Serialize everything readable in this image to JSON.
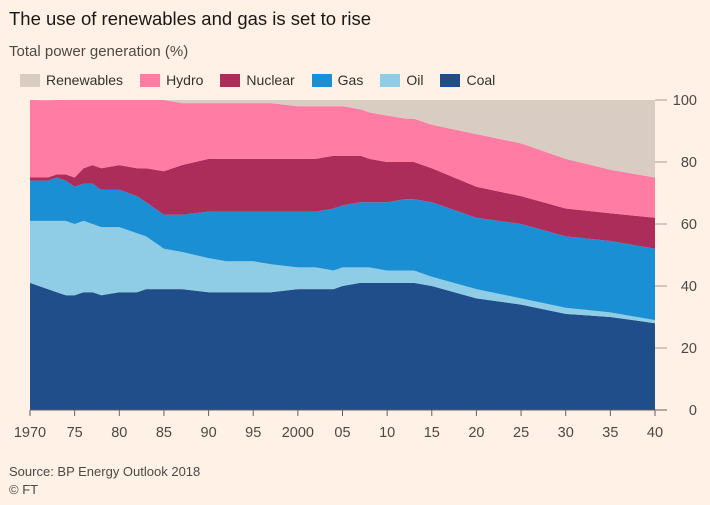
{
  "chart_data": {
    "type": "area",
    "stacked": true,
    "title": "The use of renewables and gas is set to rise",
    "subtitle": "Total power generation (%)",
    "source": "Source: BP Energy Outlook 2018",
    "copyright": "© FT",
    "x": [
      1970,
      1972,
      1973,
      1974,
      1975,
      1976,
      1977,
      1978,
      1980,
      1982,
      1983,
      1985,
      1987,
      1990,
      1992,
      1995,
      1997,
      2000,
      2002,
      2004,
      2005,
      2007,
      2008,
      2010,
      2012,
      2013,
      2015,
      2020,
      2025,
      2030,
      2035,
      2040
    ],
    "ylim": [
      0,
      100
    ],
    "yticks": [
      0,
      20,
      40,
      60,
      80,
      100
    ],
    "xticks": [
      1970,
      1975,
      1980,
      1985,
      1990,
      1995,
      2000,
      2005,
      2010,
      2015,
      2020,
      2025,
      2030,
      2035,
      2040
    ],
    "xtick_labels": [
      "1970",
      "75",
      "80",
      "85",
      "90",
      "95",
      "2000",
      "05",
      "10",
      "15",
      "20",
      "25",
      "30",
      "35",
      "40"
    ],
    "legend_position": "top-left",
    "series": [
      {
        "name": "Coal",
        "color": "#1f4e8a",
        "values": [
          41,
          39,
          38,
          37,
          37,
          38,
          38,
          37,
          38,
          38,
          39,
          39,
          39,
          38,
          38,
          38,
          38,
          39,
          39,
          39,
          40,
          41,
          41,
          41,
          41,
          41,
          40,
          36,
          34,
          31,
          30,
          28
        ]
      },
      {
        "name": "Oil",
        "color": "#8fcce6",
        "values": [
          20,
          22,
          23,
          24,
          23,
          23,
          22,
          22,
          21,
          19,
          17,
          13,
          12,
          11,
          10,
          10,
          9,
          7,
          7,
          6,
          6,
          5,
          5,
          4,
          4,
          4,
          3,
          3,
          2,
          2,
          1.5,
          1
        ]
      },
      {
        "name": "Gas",
        "color": "#1b8fd3",
        "values": [
          13,
          13,
          14,
          13,
          12,
          12,
          13,
          12,
          12,
          12,
          11,
          11,
          12,
          15,
          16,
          16,
          17,
          18,
          18,
          20,
          20,
          21,
          21,
          22,
          23,
          23,
          24,
          23,
          24,
          23,
          23,
          23
        ]
      },
      {
        "name": "Nuclear",
        "color": "#ad2d5a",
        "values": [
          1,
          1,
          1,
          2,
          3,
          5,
          6,
          7,
          8,
          9,
          11,
          14,
          16,
          17,
          17,
          17,
          17,
          17,
          17,
          17,
          16,
          15,
          14,
          13,
          12,
          12,
          11,
          10,
          9,
          9,
          9,
          10
        ]
      },
      {
        "name": "Hydro",
        "color": "#ff7ca4",
        "values": [
          25,
          24.9,
          24,
          24,
          25,
          22,
          21,
          22,
          21,
          22,
          22,
          23,
          20,
          18,
          18,
          18,
          18,
          17,
          17,
          16,
          16,
          15,
          15,
          15,
          14,
          14,
          14,
          17,
          17,
          16,
          14,
          13
        ]
      },
      {
        "name": "Renewables",
        "color": "#d9cdc3",
        "values": [
          0,
          0.1,
          0,
          0,
          0,
          0,
          0,
          0,
          0,
          0,
          0,
          0,
          1,
          1,
          1,
          1,
          1,
          2,
          2,
          2,
          2,
          3,
          4,
          5,
          6,
          6,
          8,
          11,
          14,
          19,
          22.5,
          25
        ]
      }
    ],
    "legend_order": [
      "Renewables",
      "Hydro",
      "Nuclear",
      "Gas",
      "Oil",
      "Coal"
    ]
  }
}
